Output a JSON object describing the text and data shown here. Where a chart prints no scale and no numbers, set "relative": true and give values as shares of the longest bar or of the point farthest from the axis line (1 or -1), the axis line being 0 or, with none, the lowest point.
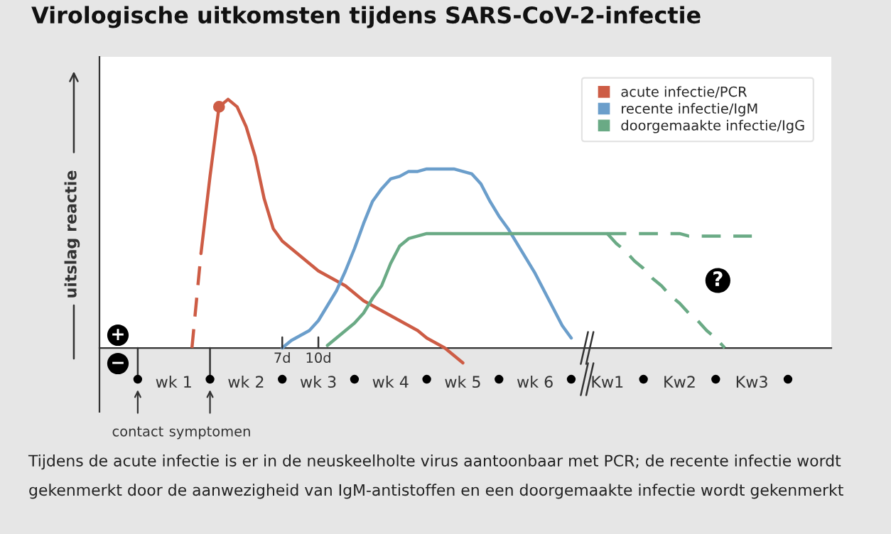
{
  "chart_data": {
    "type": "line",
    "title": "Virologische uitkomsten tijdens SARS-CoV-2-infectie",
    "ylabel": "uitslag reactie",
    "relative": true,
    "legend": "top right",
    "tick_labels": "x",
    "categories": [
      null,
      null,
      null,
      null,
      "wk 1",
      null,
      null,
      null,
      null,
      null,
      null,
      null,
      "wk 2",
      null,
      null,
      null,
      null,
      null,
      null,
      null,
      "wk 3",
      null,
      null,
      null,
      null,
      null,
      null,
      null,
      "wk 4",
      null,
      null,
      null,
      null,
      null,
      null,
      null,
      "wk 5",
      null,
      null,
      null,
      null,
      null,
      null,
      null,
      "wk 6",
      null,
      null,
      null,
      null,
      null,
      null,
      null,
      "Kw1",
      null,
      null,
      null,
      null,
      null,
      null,
      null,
      "Kw2",
      null,
      null,
      null,
      null,
      null,
      null,
      null,
      "Kw3",
      null,
      null,
      null,
      null
    ],
    "series": [
      {
        "color": "#cd5c45",
        "line_style": "dashed",
        "values": [
          null,
          null,
          null,
          null,
          null,
          null,
          0,
          0.38,
          null,
          null,
          null,
          null,
          null,
          null,
          null,
          null,
          null,
          null,
          null,
          null,
          null,
          null,
          null,
          null,
          null,
          null,
          null,
          null,
          null,
          null,
          null,
          null,
          null,
          null,
          null,
          null,
          null,
          null,
          null,
          null,
          null,
          null,
          null,
          null,
          null,
          null,
          null,
          null,
          null,
          null,
          null,
          null,
          null,
          null,
          null,
          null,
          null,
          null,
          null,
          null,
          null,
          null,
          null,
          null,
          null,
          null,
          null,
          null,
          null,
          null,
          null,
          null,
          null
        ]
      },
      {
        "name": "acute infectie/PCR",
        "color": "#cd5c45",
        "line_style": "solid",
        "values": [
          null,
          null,
          null,
          null,
          null,
          null,
          null,
          0.38,
          0.69,
          0.97,
          1.0,
          0.97,
          0.89,
          0.77,
          0.6,
          0.48,
          0.43,
          0.4,
          0.37,
          0.34,
          0.31,
          0.29,
          0.27,
          0.25,
          0.22,
          0.19,
          0.17,
          0.15,
          0.13,
          0.11,
          0.09,
          0.07,
          0.04,
          0.02,
          0.0,
          -0.03,
          -0.06,
          null,
          null,
          null,
          null,
          null,
          null,
          null,
          null,
          null,
          null,
          null,
          null,
          null,
          null,
          null,
          null,
          null,
          null,
          null,
          null,
          null,
          null,
          null,
          null,
          null,
          null,
          null,
          null,
          null,
          null,
          null,
          null,
          null,
          null,
          null,
          null
        ]
      },
      {
        "type": "scatter",
        "marker": "circle",
        "color": "#cd5c45",
        "values": [
          null,
          null,
          null,
          null,
          null,
          null,
          null,
          null,
          null,
          0.97,
          null,
          null,
          null,
          null,
          null,
          null,
          null,
          null,
          null,
          null,
          null,
          null,
          null,
          null,
          null,
          null,
          null,
          null,
          null,
          null,
          null,
          null,
          null,
          null,
          null,
          null,
          null,
          null,
          null,
          null,
          null,
          null,
          null,
          null,
          null,
          null,
          null,
          null,
          null,
          null,
          null,
          null,
          null,
          null,
          null,
          null,
          null,
          null,
          null,
          null,
          null,
          null,
          null,
          null,
          null,
          null,
          null,
          null,
          null,
          null,
          null,
          null,
          null
        ]
      },
      {
        "name": "recente infectie/IgM",
        "color": "#6b9ecb",
        "line_style": "solid",
        "values": [
          null,
          null,
          null,
          null,
          null,
          null,
          null,
          null,
          null,
          null,
          null,
          null,
          null,
          null,
          null,
          null,
          0,
          0.03,
          0.05,
          0.07,
          0.11,
          0.17,
          0.23,
          0.31,
          0.4,
          0.5,
          0.59,
          0.64,
          0.68,
          0.69,
          0.71,
          0.71,
          0.72,
          0.72,
          0.72,
          0.72,
          0.71,
          0.7,
          0.66,
          0.59,
          0.53,
          0.48,
          0.42,
          0.36,
          0.3,
          0.23,
          0.16,
          0.09,
          0.04,
          null,
          null,
          null,
          null,
          null,
          null,
          null,
          null,
          null,
          null,
          null,
          null,
          null,
          null,
          null,
          null,
          null,
          null,
          null,
          null,
          null,
          null,
          null,
          null
        ]
      },
      {
        "name": "doorgemaakte infectie/IgG",
        "color": "#6aaa85",
        "line_style": "solid",
        "values": [
          null,
          null,
          null,
          null,
          null,
          null,
          null,
          null,
          null,
          null,
          null,
          null,
          null,
          null,
          null,
          null,
          null,
          null,
          null,
          null,
          null,
          0.01,
          0.04,
          0.07,
          0.1,
          0.14,
          0.2,
          0.25,
          0.34,
          0.41,
          0.44,
          0.45,
          0.46,
          0.46,
          0.46,
          0.46,
          0.46,
          0.46,
          0.46,
          0.46,
          0.46,
          0.46,
          0.46,
          0.46,
          0.46,
          0.46,
          0.46,
          0.46,
          0.46,
          0.46,
          0.46,
          0.46,
          0.46,
          null,
          null,
          null,
          null,
          null,
          null,
          null,
          null,
          null,
          null,
          null,
          null,
          null,
          null,
          null,
          null,
          null,
          null,
          null,
          null
        ]
      },
      {
        "color": "#6aaa85",
        "line_style": "dashed",
        "values": [
          null,
          null,
          null,
          null,
          null,
          null,
          null,
          null,
          null,
          null,
          null,
          null,
          null,
          null,
          null,
          null,
          null,
          null,
          null,
          null,
          null,
          null,
          null,
          null,
          null,
          null,
          null,
          null,
          null,
          null,
          null,
          null,
          null,
          null,
          null,
          null,
          null,
          null,
          null,
          null,
          null,
          null,
          null,
          null,
          null,
          null,
          null,
          null,
          null,
          null,
          null,
          null,
          0.46,
          0.46,
          0.46,
          0.46,
          0.46,
          0.46,
          0.46,
          0.46,
          0.46,
          0.45,
          0.45,
          0.45,
          0.45,
          0.45,
          0.45,
          0.45,
          0.45,
          null,
          null,
          null,
          null
        ]
      },
      {
        "color": "#6aaa85",
        "line_style": "dashed",
        "values": [
          null,
          null,
          null,
          null,
          null,
          null,
          null,
          null,
          null,
          null,
          null,
          null,
          null,
          null,
          null,
          null,
          null,
          null,
          null,
          null,
          null,
          null,
          null,
          null,
          null,
          null,
          null,
          null,
          null,
          null,
          null,
          null,
          null,
          null,
          null,
          null,
          null,
          null,
          null,
          null,
          null,
          null,
          null,
          null,
          null,
          null,
          null,
          null,
          null,
          null,
          null,
          null,
          0.46,
          0.42,
          0.39,
          0.35,
          0.32,
          0.28,
          0.25,
          0.21,
          0.18,
          0.14,
          0.11,
          0.07,
          0.04,
          0,
          null,
          null,
          null,
          null,
          null,
          null,
          null
        ]
      }
    ],
    "annotations": [
      "Tijdens de acute infectie is er in de neuskeelholte virus aantoonbaar met PCR; de recente infectie wordt gekenmerkt door de aanwezigheid van IgM-antistoffen en een doorgemaakte infectie wordt gekenmerkt",
      "+",
      "−",
      "contact",
      "symptomen",
      "7d",
      "10d",
      "?"
    ]
  }
}
